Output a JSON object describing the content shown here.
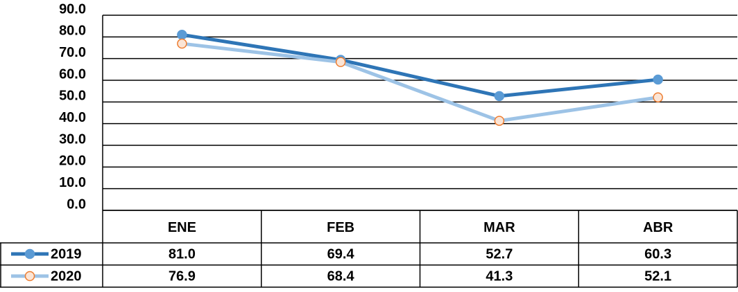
{
  "chart_data": {
    "type": "line",
    "categories": [
      "ENE",
      "FEB",
      "MAR",
      "ABR"
    ],
    "series": [
      {
        "name": "2019",
        "color": "#2e75b6",
        "marker_fill": "#5b9bd5",
        "marker_edge": "#5b9bd5",
        "values": [
          81.0,
          69.4,
          52.7,
          60.3
        ],
        "value_labels": [
          "81.0",
          "69.4",
          "52.7",
          "60.3"
        ]
      },
      {
        "name": "2020",
        "color": "#9dc3e6",
        "marker_fill": "#fbe5d6",
        "marker_edge": "#ed7d31",
        "values": [
          76.9,
          68.4,
          41.3,
          52.1
        ],
        "value_labels": [
          "76.9",
          "68.4",
          "41.3",
          "52.1"
        ]
      }
    ],
    "ylim": [
      0,
      90
    ],
    "yticks": [
      {
        "value": 0,
        "label": "0.0"
      },
      {
        "value": 10,
        "label": "10.0"
      },
      {
        "value": 20,
        "label": "20.0"
      },
      {
        "value": 30,
        "label": "30.0"
      },
      {
        "value": 40,
        "label": "40.0"
      },
      {
        "value": 50,
        "label": "50.0"
      },
      {
        "value": 60,
        "label": "60.0"
      },
      {
        "value": 70,
        "label": "70.0"
      },
      {
        "value": 80,
        "label": "80.0"
      },
      {
        "value": 90,
        "label": "90.0"
      }
    ],
    "grid": true
  }
}
